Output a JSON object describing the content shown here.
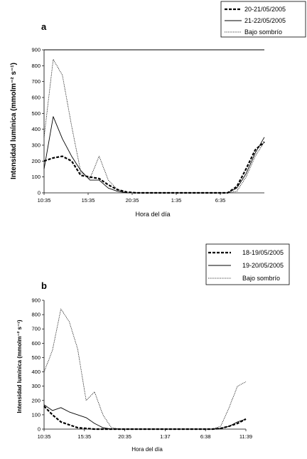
{
  "chart_data": [
    {
      "type": "line",
      "panel_label": "a",
      "ylabel": "Intensidad lumínica (mmolm⁻² s⁻¹)",
      "xlabel": "Hora del día",
      "ylim": [
        0,
        900
      ],
      "yticks": [
        "0",
        "100",
        "200",
        "300",
        "400",
        "500",
        "600",
        "700",
        "800",
        "900"
      ],
      "xticks": [
        "10:35",
        "15:35",
        "20:35",
        "1:35",
        "6:35"
      ],
      "x": [
        0,
        1,
        2,
        3,
        4,
        5,
        6,
        7,
        8,
        9,
        10,
        11,
        12,
        13,
        14,
        15,
        16,
        17,
        18,
        19,
        20,
        21,
        22,
        23,
        24
      ],
      "grid": false,
      "legend_position": "top-right",
      "series": [
        {
          "name": "20-21/05/2005",
          "style": "dashed-bold",
          "values": [
            200,
            220,
            230,
            200,
            110,
            100,
            90,
            50,
            20,
            5,
            0,
            0,
            0,
            0,
            0,
            0,
            0,
            0,
            0,
            0,
            0,
            40,
            150,
            270,
            320
          ]
        },
        {
          "name": "21-22/05/2005",
          "style": "solid",
          "values": [
            150,
            480,
            340,
            230,
            140,
            80,
            80,
            30,
            10,
            0,
            0,
            0,
            0,
            0,
            0,
            0,
            0,
            0,
            0,
            0,
            0,
            30,
            120,
            250,
            350
          ]
        },
        {
          "name": "Bajo sombrío",
          "style": "dotted",
          "values": [
            350,
            840,
            740,
            420,
            130,
            90,
            230,
            80,
            20,
            0,
            0,
            0,
            0,
            0,
            0,
            0,
            0,
            0,
            0,
            0,
            0,
            10,
            100,
            230,
            320
          ]
        }
      ]
    },
    {
      "type": "line",
      "panel_label": "b",
      "ylabel": "Intensidad lumínica (mmolm⁻² s⁻¹)",
      "xlabel": "Hora del día",
      "ylim": [
        0,
        900
      ],
      "yticks": [
        "0",
        "100",
        "200",
        "300",
        "400",
        "500",
        "600",
        "700",
        "800",
        "900"
      ],
      "xticks": [
        "10:35",
        "15:35",
        "20:35",
        "1:37",
        "6:38",
        "11:39"
      ],
      "x": [
        0,
        1,
        2,
        3,
        4,
        5,
        6,
        7,
        8,
        9,
        10,
        11,
        12,
        13,
        14,
        15,
        16,
        17,
        18,
        19,
        20,
        21,
        22,
        23,
        24
      ],
      "grid": false,
      "legend_position": "top-right",
      "series": [
        {
          "name": "18-19/05/2005",
          "style": "dashed-bold",
          "values": [
            160,
            100,
            50,
            30,
            10,
            5,
            0,
            0,
            0,
            0,
            0,
            0,
            0,
            0,
            0,
            0,
            0,
            0,
            0,
            0,
            0,
            5,
            20,
            40,
            70
          ]
        },
        {
          "name": "19-20/05/2005",
          "style": "solid",
          "values": [
            170,
            130,
            150,
            120,
            100,
            80,
            40,
            10,
            0,
            0,
            0,
            0,
            0,
            0,
            0,
            0,
            0,
            0,
            0,
            0,
            0,
            5,
            20,
            50,
            70
          ]
        },
        {
          "name": "Bajo sombrío",
          "style": "dotted",
          "values": [
            400,
            550,
            840,
            750,
            560,
            200,
            260,
            100,
            10,
            0,
            0,
            0,
            0,
            0,
            0,
            0,
            0,
            0,
            0,
            0,
            0,
            20,
            150,
            300,
            330
          ]
        }
      ]
    }
  ]
}
